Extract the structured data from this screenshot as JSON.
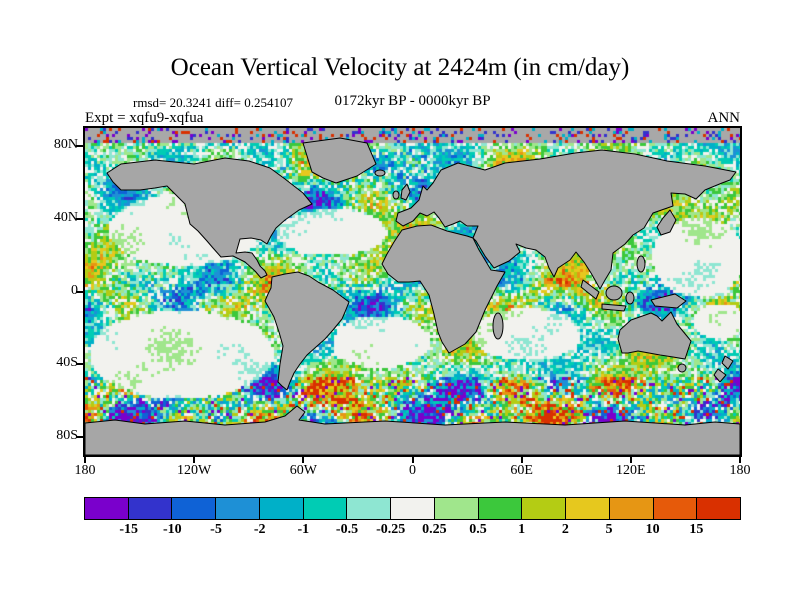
{
  "title": "Ocean Vertical Velocity at 2424m (in cm/day)",
  "header": {
    "stats": "rmsd= 20.3241 diff= 0.254107",
    "period": "0172kyr BP - 0000kyr BP",
    "experiment": "Expt = xqfu9-xqfua",
    "season": "ANN"
  },
  "axes": {
    "y_ticks": [
      {
        "label": "80N",
        "lat": 80
      },
      {
        "label": "40N",
        "lat": 40
      },
      {
        "label": "0",
        "lat": 0
      },
      {
        "label": "40S",
        "lat": -40
      },
      {
        "label": "80S",
        "lat": -80
      }
    ],
    "x_ticks": [
      {
        "label": "180",
        "lon": -180
      },
      {
        "label": "120W",
        "lon": -120
      },
      {
        "label": "60W",
        "lon": -60
      },
      {
        "label": "0",
        "lon": 0
      },
      {
        "label": "60E",
        "lon": 60
      },
      {
        "label": "120E",
        "lon": 120
      },
      {
        "label": "180",
        "lon": 180
      }
    ]
  },
  "colorbar": {
    "boundary_labels": [
      "-15",
      "-10",
      "-5",
      "-2",
      "-1",
      "-0.5",
      "-0.25",
      "0.25",
      "0.5",
      "1",
      "2",
      "5",
      "10",
      "15"
    ],
    "colors": [
      "#7a00cc",
      "#3333cc",
      "#0f62d6",
      "#1e90d6",
      "#00b0c8",
      "#00ccb4",
      "#8ee6d2",
      "#f2f2ee",
      "#a0e68c",
      "#3cc83c",
      "#b4cc14",
      "#e6c81e",
      "#e69614",
      "#e65a0a",
      "#d93000"
    ]
  },
  "map": {
    "land_color": "#a6a6a6",
    "ice_color": "#a8a8a8",
    "coast_color": "#000000"
  },
  "chart_data": {
    "type": "heatmap",
    "title": "Ocean Vertical Velocity at 2424m (in cm/day)",
    "units": "cm/day",
    "depth_m": 2424,
    "period": "0172kyr BP - 0000kyr BP",
    "experiment": "xqfu9-xqfua",
    "season": "ANN",
    "rmsd": 20.3241,
    "diff": 0.254107,
    "x_axis": {
      "tick_labels": [
        "180",
        "120W",
        "60W",
        "0",
        "60E",
        "120E",
        "180"
      ],
      "range_deg": [
        -180,
        180
      ]
    },
    "y_axis": {
      "tick_labels": [
        "80N",
        "40N",
        "0",
        "40S",
        "80S"
      ],
      "range_deg": [
        -90,
        90
      ]
    },
    "color_scale": {
      "boundaries": [
        -15,
        -10,
        -5,
        -2,
        -1,
        -0.5,
        -0.25,
        0.25,
        0.5,
        1,
        2,
        5,
        10,
        15
      ],
      "colors": [
        "#7a00cc",
        "#3333cc",
        "#0f62d6",
        "#1e90d6",
        "#00b0c8",
        "#00ccb4",
        "#8ee6d2",
        "#f2f2ee",
        "#a0e68c",
        "#3cc83c",
        "#b4cc14",
        "#e6c81e",
        "#e69614",
        "#e65a0a",
        "#d93000"
      ]
    },
    "legend_position": "bottom"
  }
}
